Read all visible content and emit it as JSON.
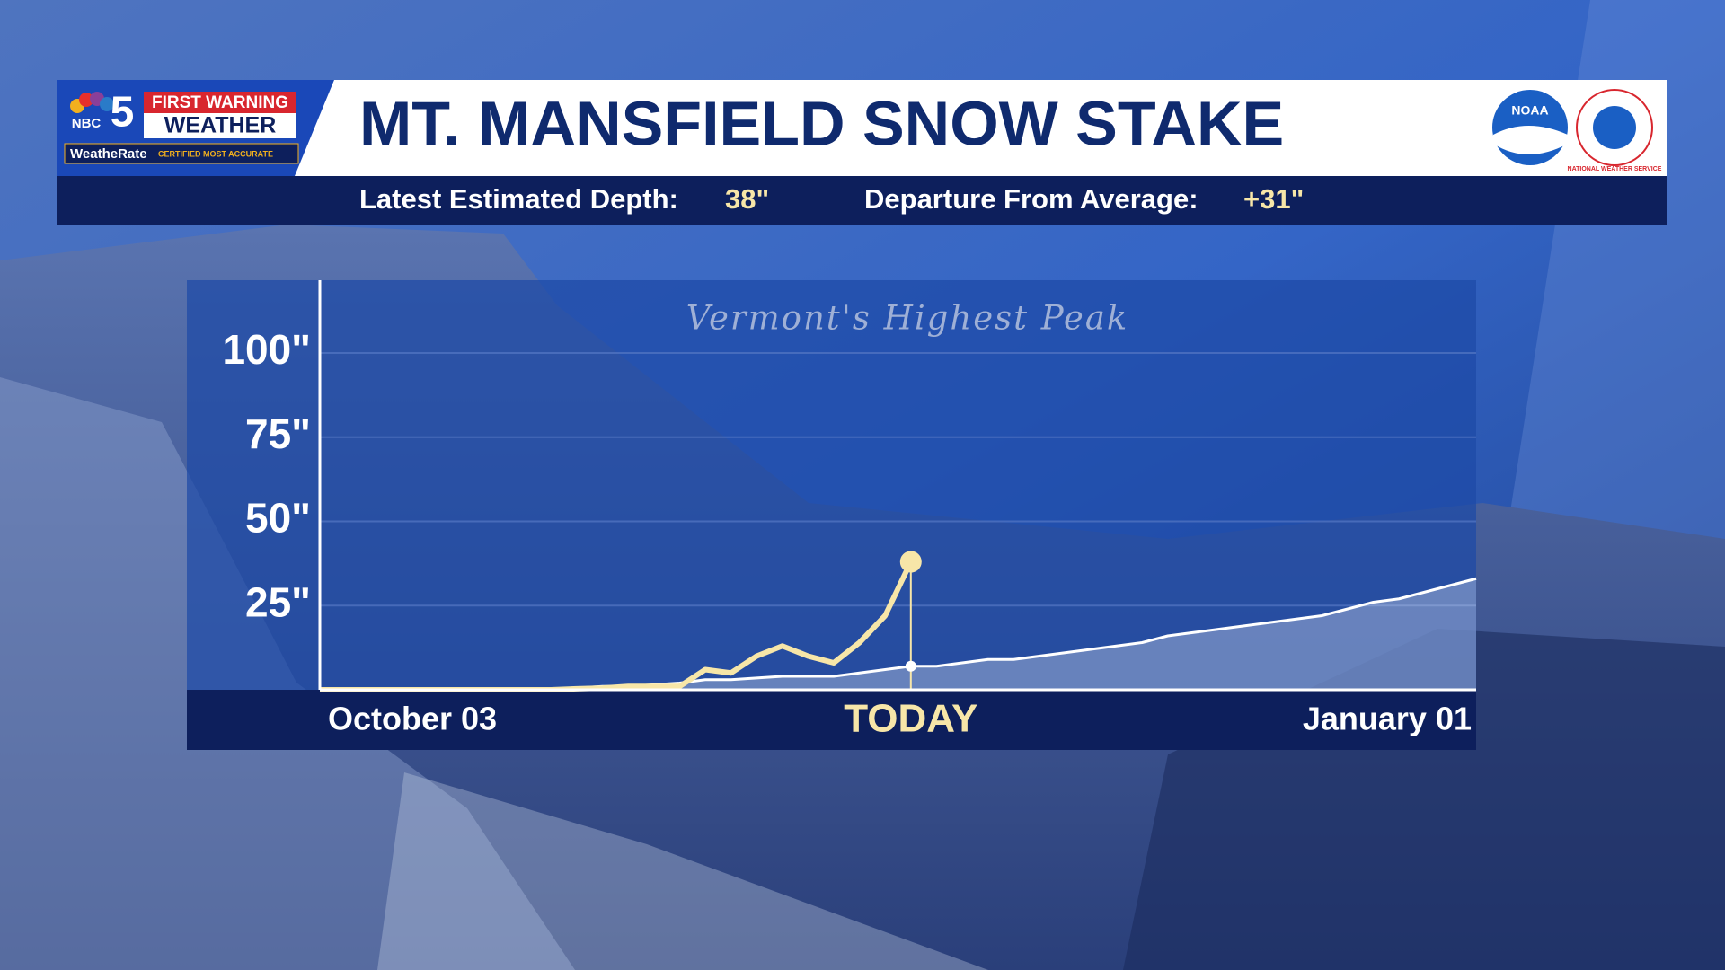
{
  "branding": {
    "network": "NBC",
    "channel": "5",
    "banner": "FIRST WARNING",
    "product": "WEATHER",
    "rating": "WeatheRate",
    "rating_note": "CERTIFIED MOST ACCURATE",
    "agency": "NOAA",
    "service": "NATIONAL WEATHER SERVICE"
  },
  "stats": [
    {
      "label": "Latest Estimated Depth:",
      "text": "38\""
    },
    {
      "label": "Departure From Average:",
      "text": "+31\""
    }
  ],
  "chart_data": {
    "type": "line",
    "title": "MT. MANSFIELD SNOW STAKE",
    "subtitle": "Vermont's Highest Peak",
    "categories": [
      "October 03",
      null,
      null,
      null,
      null,
      null,
      null,
      null,
      null,
      null,
      null,
      null,
      null,
      null,
      null,
      null,
      null,
      null,
      null,
      null,
      null,
      null,
      null,
      "TODAY",
      null,
      null,
      null,
      null,
      null,
      null,
      null,
      null,
      null,
      null,
      null,
      null,
      null,
      null,
      null,
      null,
      null,
      null,
      null,
      null,
      null,
      "January 01"
    ],
    "series": [
      {
        "name": "Estimated Depth",
        "color": "#f7e6a8",
        "values": [
          0,
          0,
          0,
          0,
          0,
          0,
          0,
          0,
          0,
          0,
          0.3,
          0.5,
          1,
          1,
          1,
          6,
          5,
          10,
          13,
          10,
          8,
          14,
          22,
          38,
          null,
          null,
          null,
          null,
          null,
          null,
          null,
          null,
          null,
          null,
          null,
          null,
          null,
          null,
          null,
          null,
          null,
          null,
          null,
          null,
          null,
          null
        ]
      },
      {
        "name": "Average",
        "color": "#ffffff",
        "values": [
          0,
          0,
          0,
          0,
          0,
          0,
          0,
          0,
          0,
          0,
          0.5,
          1,
          1,
          1.5,
          2,
          3,
          3,
          3.5,
          4,
          4,
          4,
          5,
          6,
          7,
          7,
          8,
          9,
          9,
          10,
          11,
          12,
          13,
          14,
          16,
          17,
          18,
          19,
          20,
          21,
          22,
          24,
          26,
          27,
          29,
          31,
          33
        ]
      }
    ],
    "ylim": [
      0,
      120
    ],
    "yticks": [
      {
        "value": 25,
        "label": "25\""
      },
      {
        "value": 50,
        "label": "50\""
      },
      {
        "value": 75,
        "label": "75\""
      },
      {
        "value": 100,
        "label": "100\""
      }
    ],
    "grid": true,
    "today_index": 23
  }
}
